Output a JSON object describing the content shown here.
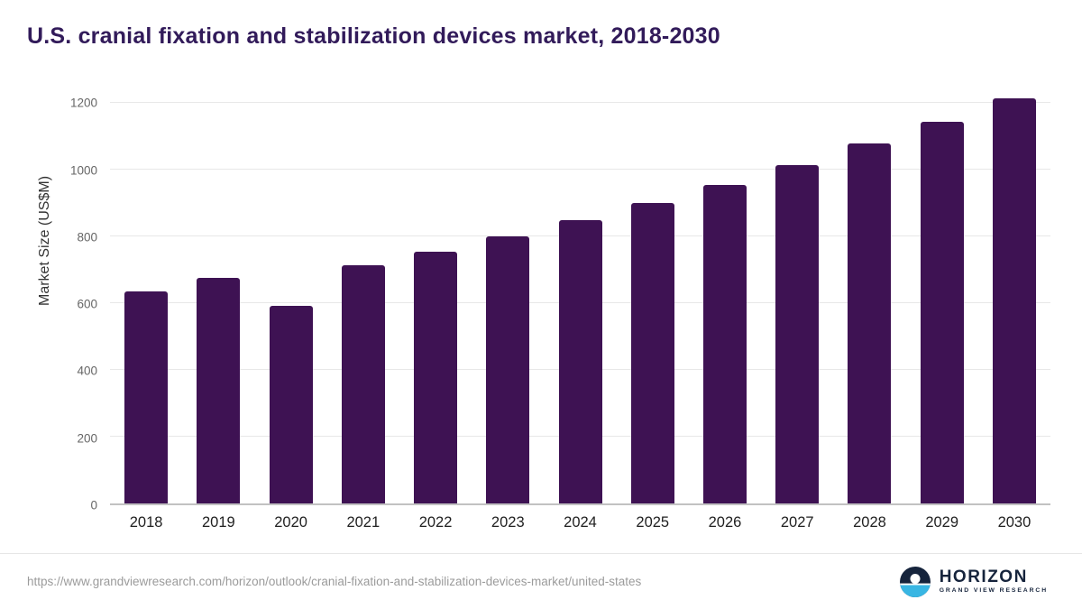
{
  "title": "U.S. cranial fixation and stabilization devices market, 2018-2030",
  "chart_data": {
    "type": "bar",
    "title": "U.S. cranial fixation and stabilization devices market, 2018-2030",
    "categories": [
      "2018",
      "2019",
      "2020",
      "2021",
      "2022",
      "2023",
      "2024",
      "2025",
      "2026",
      "2027",
      "2028",
      "2029",
      "2030"
    ],
    "values": [
      636,
      676,
      592,
      714,
      755,
      801,
      850,
      901,
      955,
      1014,
      1078,
      1143,
      1213
    ],
    "xlabel": "",
    "ylabel": "Market Size (US$M)",
    "ylim": [
      0,
      1225
    ],
    "yticks": [
      0,
      200,
      400,
      600,
      800,
      1000,
      1200
    ],
    "grid": true,
    "legend": "none",
    "bar_color": "#3e1253"
  },
  "colors": {
    "title": "#321b5a",
    "bar": "#3e1253",
    "gridline": "#e8e8e8",
    "axis": "#c2c2c2",
    "logo_navy": "#16243c",
    "logo_cyan": "#38b6e3"
  },
  "footer": {
    "source_url": "https://www.grandviewresearch.com/horizon/outlook/cranial-fixation-and-stabilization-devices-market/united-states",
    "logo": {
      "name": "HORIZON",
      "subtitle": "GRAND VIEW RESEARCH"
    }
  }
}
